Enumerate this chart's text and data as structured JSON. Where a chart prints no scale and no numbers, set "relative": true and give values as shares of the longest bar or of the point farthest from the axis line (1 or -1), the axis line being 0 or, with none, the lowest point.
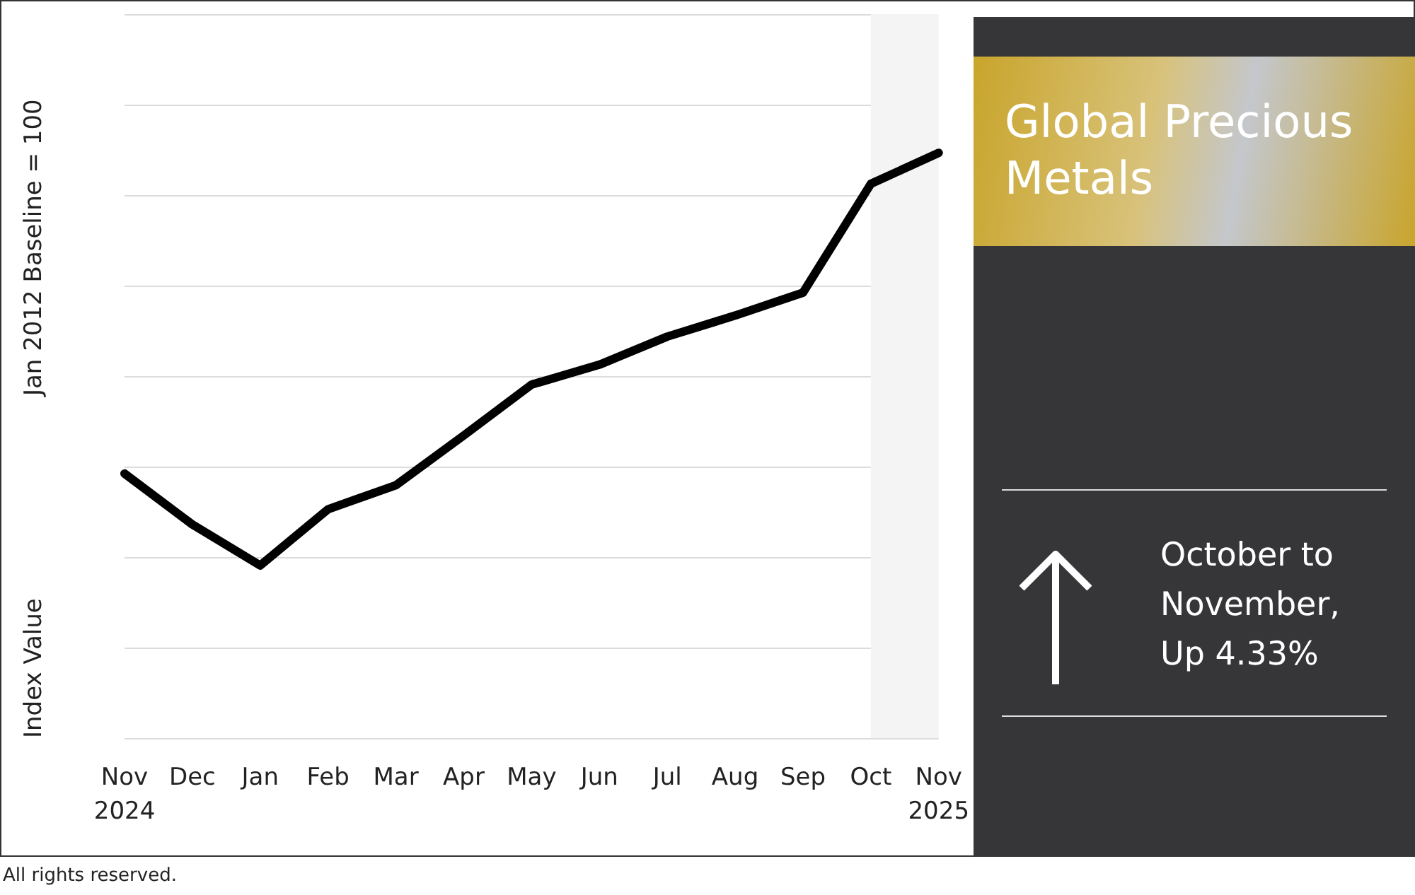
{
  "chart_data": {
    "type": "line",
    "title": "Global Precious Metals",
    "subtitle": "October to November, Up 4.33%",
    "ylabel": "Index Value",
    "annotations": [
      "Jan 2012 Baseline = 100",
      "All rights reserved."
    ],
    "categories": [
      "Nov\n2024",
      "Dec",
      "Jan",
      "Feb",
      "Mar",
      "Apr",
      "May",
      "Jun",
      "Jul",
      "Aug",
      "Sep",
      "Oct",
      "Nov\n2025"
    ],
    "series": [
      {
        "color": "#000000",
        "values": [
          0.452,
          0.365,
          0.295,
          0.391,
          0.432,
          0.517,
          0.604,
          0.638,
          0.686,
          0.722,
          0.761,
          0.947,
          1
        ]
      }
    ],
    "relative": true,
    "grid": "y",
    "marker": "none",
    "line_style": "solid",
    "bands": [
      {
        "axis": "x",
        "from": "Oct",
        "to": "Nov\n2025",
        "color": "#f3f4f3"
      }
    ]
  }
}
